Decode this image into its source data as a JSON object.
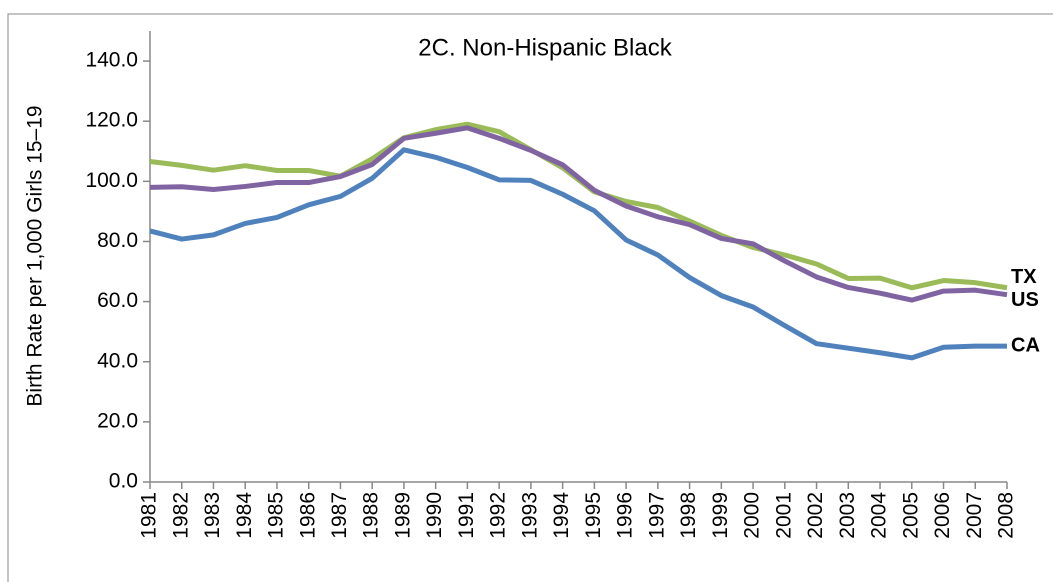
{
  "chart_data": {
    "type": "line",
    "title": "2C. Non-Hispanic Black",
    "y_label": "Birth Rate per 1,000 Girls 15–19",
    "categories": [
      "1981",
      "1982",
      "1983",
      "1984",
      "1985",
      "1986",
      "1987",
      "1988",
      "1989",
      "1990",
      "1991",
      "1992",
      "1993",
      "1994",
      "1995",
      "1996",
      "1997",
      "1998",
      "1999",
      "2000",
      "2001",
      "2002",
      "2003",
      "2004",
      "2005",
      "2006",
      "2007",
      "2008"
    ],
    "series": [
      {
        "name": "TX",
        "color": "#9bbb59",
        "values": [
          106.6,
          105.3,
          103.7,
          105.2,
          103.6,
          103.6,
          101.7,
          107.5,
          114.5,
          117.2,
          119.0,
          116.5,
          110.5,
          104.5,
          96.5,
          93.3,
          91.3,
          86.8,
          82.0,
          78.0,
          75.5,
          72.5,
          67.7,
          67.8,
          64.6,
          67.0,
          66.3,
          64.6
        ]
      },
      {
        "name": "US",
        "color": "#8064a2",
        "values": [
          98.0,
          98.2,
          97.3,
          98.3,
          99.6,
          99.6,
          101.6,
          105.6,
          114.3,
          116.0,
          117.8,
          114.3,
          110.3,
          105.5,
          97.0,
          91.8,
          88.2,
          85.6,
          81.0,
          79.2,
          73.5,
          68.2,
          64.7,
          62.8,
          60.5,
          63.5,
          63.8,
          62.3
        ]
      },
      {
        "name": "CA",
        "color": "#4f81bd",
        "values": [
          83.5,
          80.8,
          82.2,
          86.0,
          88.0,
          92.2,
          95.0,
          101.0,
          110.5,
          108.0,
          104.6,
          100.5,
          100.3,
          95.7,
          90.2,
          80.5,
          75.5,
          68.0,
          62.0,
          58.2,
          52.0,
          46.0,
          44.5,
          43.0,
          41.3,
          44.8,
          45.2,
          45.2
        ]
      }
    ],
    "ylim": [
      0,
      150
    ],
    "yticks": [
      {
        "value": 0,
        "label": "0.0"
      },
      {
        "value": 20,
        "label": "20.0"
      },
      {
        "value": 40,
        "label": "40.0"
      },
      {
        "value": 60,
        "label": "60.0"
      },
      {
        "value": 80,
        "label": "80.0"
      },
      {
        "value": 100,
        "label": "100.0"
      },
      {
        "value": 120,
        "label": "120.0"
      },
      {
        "value": 140,
        "label": "140.0"
      }
    ],
    "grid": false
  }
}
